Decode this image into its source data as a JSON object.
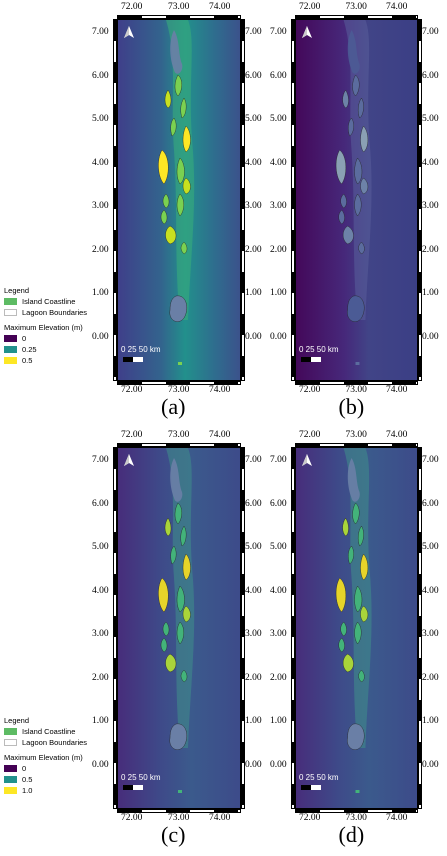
{
  "panels": [
    {
      "caption": "(a)",
      "x_ticks": [
        "72.00",
        "73.00",
        "74.00"
      ],
      "y_ticks": [
        "7.00",
        "6.00",
        "5.00",
        "4.00",
        "3.00",
        "2.00",
        "1.00",
        "0.00"
      ],
      "scale_text": "0  25 50 km",
      "north_icon": "north-arrow-icon"
    },
    {
      "caption": "(b)",
      "x_ticks": [
        "72.00",
        "73.00",
        "74.00"
      ],
      "y_ticks": [
        "7.00",
        "6.00",
        "5.00",
        "4.00",
        "3.00",
        "2.00",
        "1.00",
        "0.00"
      ],
      "scale_text": "0  25 50 km",
      "north_icon": "north-arrow-icon"
    },
    {
      "caption": "(c)",
      "x_ticks": [
        "72.00",
        "73.00",
        "74.00"
      ],
      "y_ticks": [
        "7.00",
        "6.00",
        "5.00",
        "4.00",
        "3.00",
        "2.00",
        "1.00",
        "0.00"
      ],
      "scale_text": "0  25 50 km",
      "north_icon": "north-arrow-icon"
    },
    {
      "caption": "(d)",
      "x_ticks": [
        "72.00",
        "73.00",
        "74.00"
      ],
      "y_ticks": [
        "7.00",
        "6.00",
        "5.00",
        "4.00",
        "3.00",
        "2.00",
        "1.00",
        "0.00"
      ],
      "scale_text": "0  25 50 km",
      "north_icon": "north-arrow-icon"
    }
  ],
  "legend_top": {
    "title": "Legend",
    "island": "Island Coastline",
    "lagoon": "Lagoon Boundaries",
    "ramp_title": "Maximum Elevation (m)",
    "ramp": [
      {
        "label": "0",
        "color": "#440154"
      },
      {
        "label": "0.25",
        "color": "#21918c"
      },
      {
        "label": "0.5",
        "color": "#fde725"
      }
    ]
  },
  "legend_bottom": {
    "title": "Legend",
    "island": "Island Coastline",
    "lagoon": "Lagoon Boundaries",
    "ramp_title": "Maximum Elevation (m)",
    "ramp": [
      {
        "label": "0",
        "color": "#440154"
      },
      {
        "label": "0.5",
        "color": "#21918c"
      },
      {
        "label": "1.0",
        "color": "#fde725"
      }
    ]
  },
  "colors": {
    "island": "#5dbb63",
    "lagoon": "#ffffff"
  }
}
